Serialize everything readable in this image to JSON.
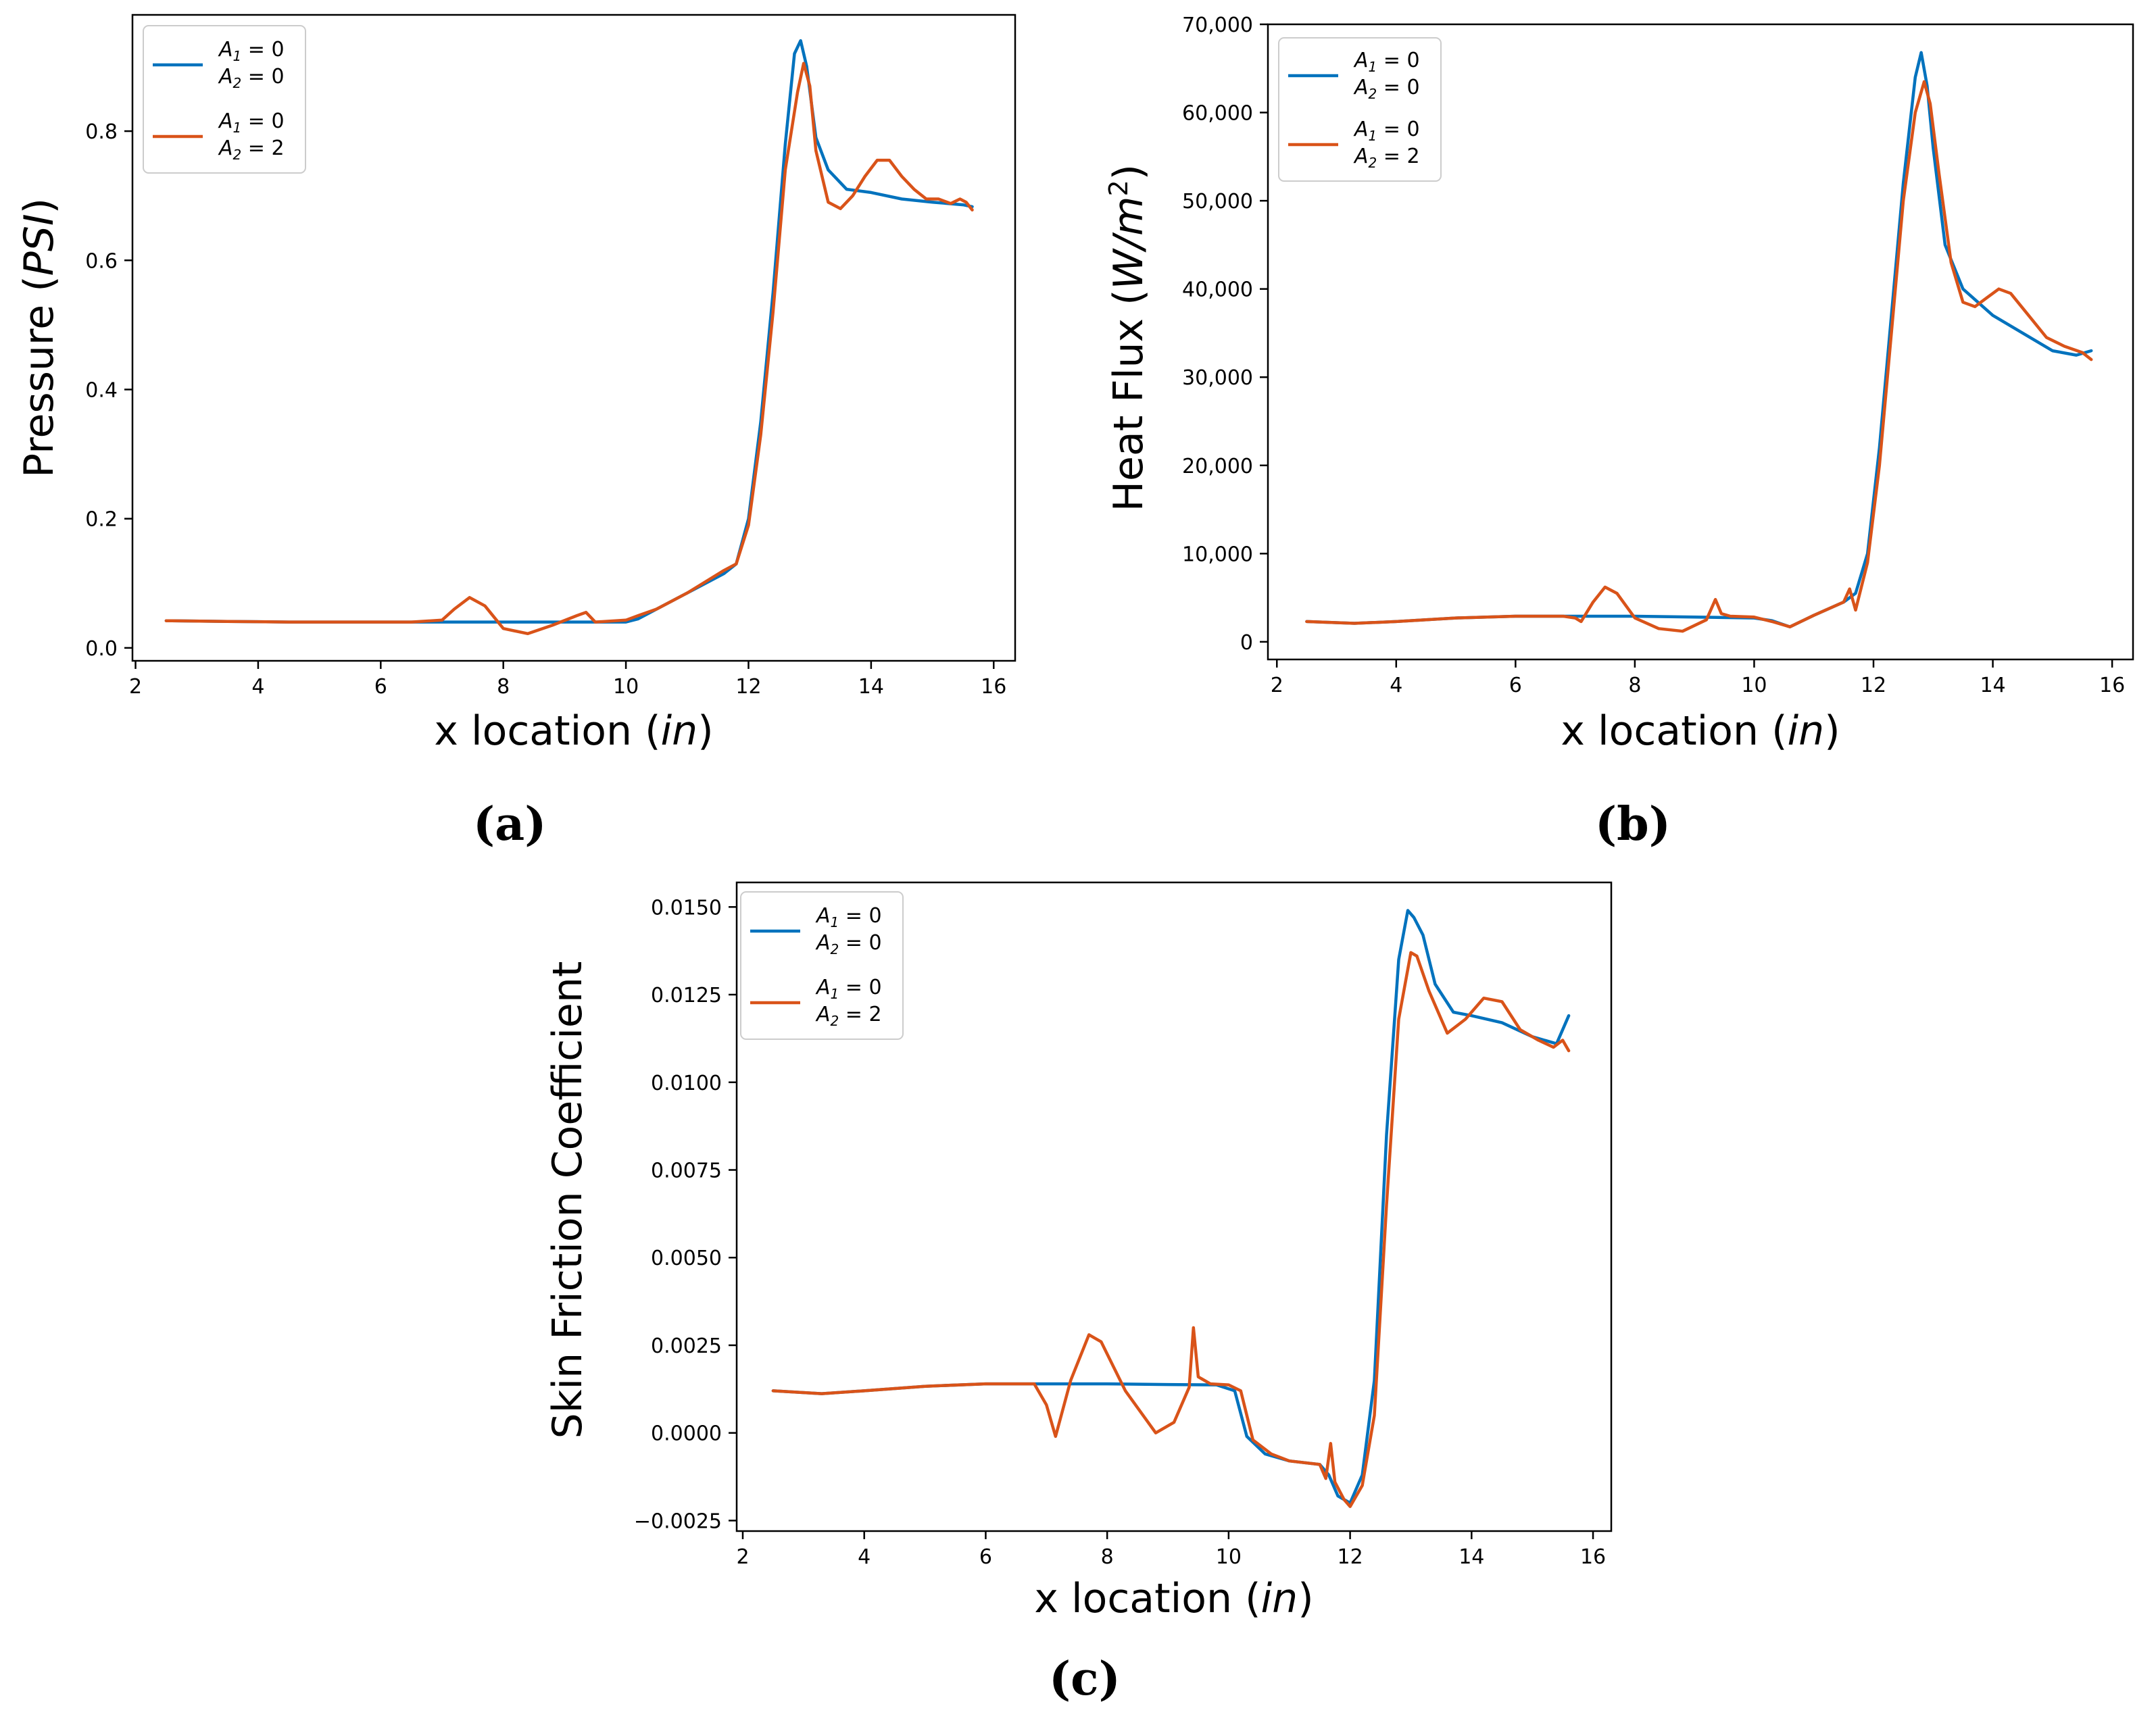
{
  "chart_data": [
    {
      "type": "line",
      "panel": "a",
      "caption": "(a)",
      "title": "",
      "xlabel": "x location (in)",
      "xlabel_plain": "x location (",
      "xlabel_italic": "in",
      "xlabel_close": ")",
      "ylabel_plain": "Pressure (",
      "ylabel_italic": "PSI",
      "ylabel_close": ")",
      "xlim": [
        1.95,
        16.35
      ],
      "ylim": [
        -0.02,
        0.98
      ],
      "xticks": [
        2,
        4,
        6,
        8,
        10,
        12,
        14,
        16
      ],
      "xtick_labels": [
        "2",
        "4",
        "6",
        "8",
        "10",
        "12",
        "14",
        "16"
      ],
      "yticks": [
        0.0,
        0.2,
        0.4,
        0.6,
        0.8
      ],
      "ytick_labels": [
        "0.0",
        "0.2",
        "0.4",
        "0.6",
        "0.8"
      ],
      "legend_position": "top-left",
      "series": [
        {
          "name": "A1 = 0, A2 = 0",
          "label_line1": "A",
          "label_sub1": "1",
          "label_eq1": " = 0",
          "label_line2": "A",
          "label_sub2": "2",
          "label_eq2": " = 0",
          "color": "#0072bd",
          "x": [
            2.5,
            3.5,
            4.5,
            5.5,
            6.5,
            7.5,
            8.5,
            9.5,
            10.0,
            10.2,
            10.5,
            11.0,
            11.6,
            11.8,
            12.0,
            12.2,
            12.4,
            12.6,
            12.75,
            12.85,
            12.95,
            13.1,
            13.3,
            13.6,
            14.0,
            14.5,
            15.0,
            15.5,
            15.65
          ],
          "y": [
            0.042,
            0.041,
            0.04,
            0.04,
            0.04,
            0.04,
            0.04,
            0.04,
            0.04,
            0.045,
            0.06,
            0.085,
            0.115,
            0.13,
            0.2,
            0.35,
            0.55,
            0.78,
            0.92,
            0.94,
            0.9,
            0.79,
            0.74,
            0.71,
            0.705,
            0.695,
            0.69,
            0.686,
            0.683
          ]
        },
        {
          "name": "A1 = 0, A2 = 2",
          "label_line1": "A",
          "label_sub1": "1",
          "label_eq1": " = 0",
          "label_line2": "A",
          "label_sub2": "2",
          "label_eq2": " = 2",
          "color": "#d95319",
          "x": [
            2.5,
            3.5,
            4.5,
            5.5,
            6.5,
            7.0,
            7.2,
            7.45,
            7.7,
            8.0,
            8.4,
            8.8,
            9.2,
            9.35,
            9.5,
            10.0,
            10.2,
            10.5,
            11.0,
            11.6,
            11.7,
            11.8,
            12.0,
            12.2,
            12.4,
            12.6,
            12.8,
            12.9,
            13.0,
            13.1,
            13.3,
            13.5,
            13.7,
            13.9,
            14.1,
            14.3,
            14.5,
            14.7,
            14.9,
            15.1,
            15.3,
            15.45,
            15.55,
            15.65
          ],
          "y": [
            0.042,
            0.041,
            0.04,
            0.04,
            0.04,
            0.043,
            0.06,
            0.078,
            0.065,
            0.03,
            0.022,
            0.035,
            0.05,
            0.055,
            0.04,
            0.043,
            0.05,
            0.06,
            0.085,
            0.12,
            0.125,
            0.13,
            0.19,
            0.33,
            0.52,
            0.74,
            0.86,
            0.905,
            0.87,
            0.77,
            0.69,
            0.68,
            0.7,
            0.73,
            0.755,
            0.755,
            0.73,
            0.71,
            0.695,
            0.695,
            0.688,
            0.695,
            0.69,
            0.678
          ]
        }
      ]
    },
    {
      "type": "line",
      "panel": "b",
      "caption": "(b)",
      "title": "",
      "xlabel": "x location (in)",
      "xlabel_plain": "x location (",
      "xlabel_italic": "in",
      "xlabel_close": ")",
      "ylabel_plain": "Heat Flux (",
      "ylabel_italic": "W/m",
      "ylabel_sup": "2",
      "ylabel_close": ")",
      "xlim": [
        1.85,
        16.35
      ],
      "ylim": [
        -2000,
        70000
      ],
      "xticks": [
        2,
        4,
        6,
        8,
        10,
        12,
        14,
        16
      ],
      "xtick_labels": [
        "2",
        "4",
        "6",
        "8",
        "10",
        "12",
        "14",
        "16"
      ],
      "yticks": [
        0,
        10000,
        20000,
        30000,
        40000,
        50000,
        60000,
        70000
      ],
      "ytick_labels": [
        "0",
        "10,000",
        "20,000",
        "30,000",
        "40,000",
        "50,000",
        "60,000",
        "70,000"
      ],
      "legend_position": "top-left",
      "series": [
        {
          "name": "A1 = 0, A2 = 0",
          "label_line1": "A",
          "label_sub1": "1",
          "label_eq1": " = 0",
          "label_line2": "A",
          "label_sub2": "2",
          "label_eq2": " = 0",
          "color": "#0072bd",
          "x": [
            2.5,
            3.3,
            4.0,
            5.0,
            6.0,
            7.0,
            8.0,
            9.0,
            10.0,
            10.3,
            10.6,
            11.0,
            11.5,
            11.7,
            11.9,
            12.1,
            12.3,
            12.5,
            12.7,
            12.8,
            12.9,
            13.0,
            13.2,
            13.5,
            14.0,
            14.5,
            15.0,
            15.4,
            15.65
          ],
          "y": [
            2300,
            2100,
            2300,
            2700,
            2900,
            2900,
            2900,
            2800,
            2700,
            2400,
            1700,
            3000,
            4500,
            5500,
            10000,
            22000,
            37000,
            52000,
            64000,
            66800,
            63000,
            56000,
            45000,
            40000,
            37000,
            35000,
            33000,
            32500,
            33000
          ]
        },
        {
          "name": "A1 = 0, A2 = 2",
          "label_line1": "A",
          "label_sub1": "1",
          "label_eq1": " = 0",
          "label_line2": "A",
          "label_sub2": "2",
          "label_eq2": " = 2",
          "color": "#d95319",
          "x": [
            2.5,
            3.3,
            4.0,
            5.0,
            6.0,
            6.8,
            7.0,
            7.1,
            7.3,
            7.5,
            7.7,
            8.0,
            8.4,
            8.8,
            9.2,
            9.35,
            9.45,
            9.6,
            10.0,
            10.3,
            10.6,
            11.0,
            11.5,
            11.6,
            11.7,
            11.9,
            12.1,
            12.3,
            12.5,
            12.7,
            12.85,
            12.95,
            13.1,
            13.3,
            13.5,
            13.7,
            13.9,
            14.1,
            14.3,
            14.6,
            14.9,
            15.2,
            15.5,
            15.65
          ],
          "y": [
            2300,
            2100,
            2300,
            2700,
            2900,
            2900,
            2700,
            2300,
            4500,
            6200,
            5500,
            2700,
            1500,
            1200,
            2500,
            4800,
            3200,
            2900,
            2800,
            2300,
            1700,
            3000,
            4500,
            6000,
            3600,
            9000,
            20000,
            35000,
            50000,
            60000,
            63500,
            61000,
            53000,
            43000,
            38500,
            38000,
            39000,
            40000,
            39500,
            37000,
            34500,
            33500,
            32800,
            32000
          ]
        }
      ]
    },
    {
      "type": "line",
      "panel": "c",
      "caption": "(c)",
      "title": "",
      "xlabel": "x location (in)",
      "xlabel_plain": "x location (",
      "xlabel_italic": "in",
      "xlabel_close": ")",
      "ylabel_plain": "Skin Friction Coefficient",
      "xlim": [
        1.9,
        16.3
      ],
      "ylim": [
        -0.0028,
        0.0157
      ],
      "xticks": [
        2,
        4,
        6,
        8,
        10,
        12,
        14,
        16
      ],
      "xtick_labels": [
        "2",
        "4",
        "6",
        "8",
        "10",
        "12",
        "14",
        "16"
      ],
      "yticks": [
        -0.0025,
        0.0,
        0.0025,
        0.005,
        0.0075,
        0.01,
        0.0125,
        0.015
      ],
      "ytick_labels": [
        "−0.0025",
        "0.0000",
        "0.0025",
        "0.0050",
        "0.0075",
        "0.0100",
        "0.0125",
        "0.0150"
      ],
      "legend_position": "top-left",
      "series": [
        {
          "name": "A1 = 0, A2 = 0",
          "label_line1": "A",
          "label_sub1": "1",
          "label_eq1": " = 0",
          "label_line2": "A",
          "label_sub2": "2",
          "label_eq2": " = 0",
          "color": "#0072bd",
          "x": [
            2.5,
            3.3,
            4.0,
            5.0,
            6.0,
            7.0,
            8.0,
            9.0,
            9.8,
            10.1,
            10.3,
            10.6,
            11.0,
            11.5,
            11.65,
            11.8,
            12.0,
            12.2,
            12.4,
            12.6,
            12.8,
            12.95,
            13.05,
            13.2,
            13.4,
            13.7,
            14.0,
            14.5,
            15.0,
            15.4,
            15.6
          ],
          "y": [
            0.0012,
            0.00112,
            0.0012,
            0.00133,
            0.0014,
            0.0014,
            0.0014,
            0.00138,
            0.00137,
            0.0012,
            -0.0001,
            -0.0006,
            -0.0008,
            -0.0009,
            -0.0012,
            -0.0018,
            -0.002,
            -0.0012,
            0.0015,
            0.0085,
            0.0135,
            0.0149,
            0.0147,
            0.0142,
            0.0128,
            0.012,
            0.0119,
            0.0117,
            0.0113,
            0.0111,
            0.0119
          ]
        },
        {
          "name": "A1 = 0, A2 = 2",
          "label_line1": "A",
          "label_sub1": "1",
          "label_eq1": " = 0",
          "label_line2": "A",
          "label_sub2": "2",
          "label_eq2": " = 2",
          "color": "#d95319",
          "x": [
            2.5,
            3.3,
            4.0,
            5.0,
            6.0,
            6.8,
            7.0,
            7.15,
            7.4,
            7.7,
            7.9,
            8.3,
            8.8,
            9.1,
            9.35,
            9.42,
            9.5,
            9.7,
            10.0,
            10.2,
            10.4,
            10.7,
            11.0,
            11.5,
            11.6,
            11.68,
            11.75,
            11.9,
            12.0,
            12.2,
            12.4,
            12.6,
            12.8,
            13.0,
            13.1,
            13.3,
            13.6,
            13.9,
            14.2,
            14.5,
            14.8,
            15.1,
            15.35,
            15.5,
            15.6
          ],
          "y": [
            0.0012,
            0.00112,
            0.0012,
            0.00133,
            0.0014,
            0.0014,
            0.0008,
            -0.0001,
            0.0015,
            0.0028,
            0.0026,
            0.0012,
            0.0,
            0.0003,
            0.0013,
            0.003,
            0.0016,
            0.0014,
            0.00137,
            0.0012,
            -0.0002,
            -0.0006,
            -0.0008,
            -0.0009,
            -0.0013,
            -0.0003,
            -0.0014,
            -0.0019,
            -0.0021,
            -0.0015,
            0.0005,
            0.0065,
            0.0118,
            0.0137,
            0.0136,
            0.0126,
            0.0114,
            0.0118,
            0.0124,
            0.0123,
            0.0115,
            0.0112,
            0.011,
            0.0112,
            0.0109
          ]
        }
      ]
    }
  ]
}
